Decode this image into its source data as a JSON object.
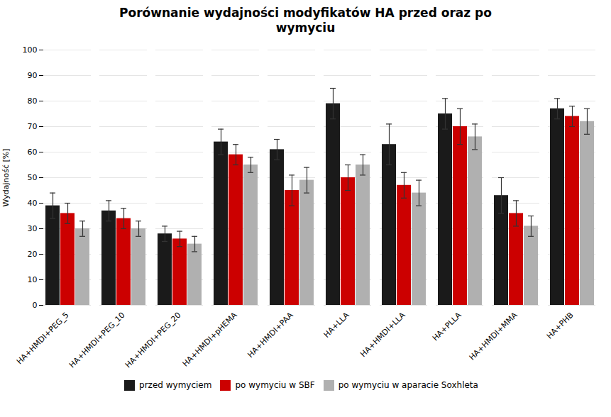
{
  "chart_data": {
    "type": "bar",
    "title": "Porównanie wydajności modyfikatów HA przed oraz po\nwymyciu",
    "ylabel": "Wydajność [%]",
    "categories": [
      "HA+HMDI+PEG_5",
      "HA+HMDI+PEG_10",
      "HA+HMDI+PEG_20",
      "HA+HMDI+pHEMA",
      "HA+HMDI+PAA",
      "HA+LLA",
      "HA+HMDI+LLA",
      "HA+PLLA",
      "HA+HMDI+MMA",
      "HA+PHB"
    ],
    "series": [
      {
        "name": "przed wymyciem",
        "color": "#1a1a1a",
        "values": [
          39,
          37,
          28,
          64,
          61,
          79,
          63,
          75,
          43,
          77
        ],
        "errors": [
          5,
          4,
          3,
          5,
          4,
          6,
          8,
          6,
          7,
          4
        ]
      },
      {
        "name": "po wymyciu w SBF",
        "color": "#cc0000",
        "values": [
          36,
          34,
          26,
          59,
          45,
          50,
          47,
          70,
          36,
          74
        ],
        "errors": [
          4,
          4,
          3,
          4,
          6,
          5,
          5,
          7,
          5,
          4
        ]
      },
      {
        "name": "po wymyciu w aparacie Soxhleta",
        "color": "#b0b0b0",
        "values": [
          30,
          30,
          24,
          55,
          49,
          55,
          44,
          66,
          31,
          72
        ],
        "errors": [
          3,
          3,
          3,
          3,
          5,
          4,
          5,
          5,
          4,
          5
        ]
      }
    ],
    "ylim": [
      0,
      100
    ],
    "yticks": [
      0,
      10,
      20,
      30,
      40,
      50,
      60,
      70,
      80,
      90,
      100
    ],
    "grid": true,
    "legend": "bottom"
  }
}
